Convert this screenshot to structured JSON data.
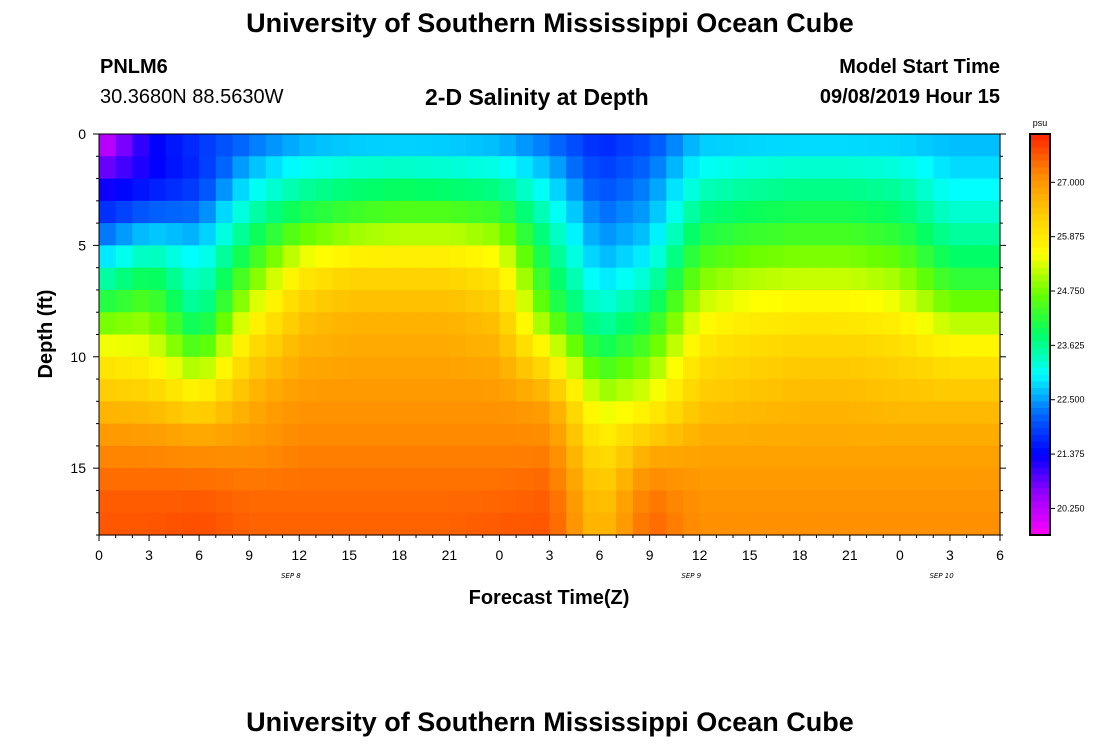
{
  "header": {
    "title": "University of Southern Mississippi Ocean Cube",
    "station_id": "PNLM6",
    "station_coords": "30.3680N 88.5630W",
    "plot_title": "2-D Salinity at Depth",
    "model_start_label": "Model Start Time",
    "model_start_value": "09/08/2019 Hour 15"
  },
  "footer": {
    "title": "University of Southern Mississippi Ocean Cube"
  },
  "chart_data": {
    "type": "heatmap",
    "title": "2-D Salinity at Depth",
    "xlabel": "Forecast Time(Z)",
    "ylabel": "Depth (ft)",
    "x_hours_range": [
      0,
      54
    ],
    "y_depth_range": [
      0,
      18
    ],
    "x_tick_labels": [
      "0",
      "3",
      "6",
      "9",
      "12",
      "15",
      "18",
      "21",
      "0",
      "3",
      "6",
      "9",
      "12",
      "15",
      "18",
      "21",
      "0",
      "3",
      "6"
    ],
    "y_tick_labels": [
      "0",
      "5",
      "10",
      "15"
    ],
    "y_tick_values": [
      0,
      5,
      10,
      15
    ],
    "date_labels": [
      {
        "text": "SEP 8",
        "hour": 11.5
      },
      {
        "text": "SEP 9",
        "hour": 35.5
      },
      {
        "text": "SEP 10",
        "hour": 50.5
      }
    ],
    "colorbar": {
      "unit": "psu",
      "range": [
        19.7,
        28.0
      ],
      "tick_labels": [
        "27.000",
        "25.875",
        "24.750",
        "23.625",
        "22.500",
        "21.375",
        "20.250"
      ],
      "tick_values": [
        27.0,
        25.875,
        24.75,
        23.625,
        22.5,
        21.375,
        20.25
      ],
      "colors": [
        "#ff00ff",
        "#9900ff",
        "#0000ff",
        "#0066ff",
        "#00ffff",
        "#00ff66",
        "#66ff00",
        "#ffff00",
        "#ffcc00",
        "#ff8800",
        "#ff2200"
      ]
    },
    "grid_hours": [
      0,
      3,
      6,
      9,
      12,
      15,
      18,
      21,
      24,
      27,
      30,
      33,
      36,
      39,
      42,
      45,
      48,
      51,
      54
    ],
    "grid_depths": [
      0,
      2,
      4,
      6,
      8,
      10,
      12,
      14,
      16,
      18
    ],
    "salinity_psu": [
      [
        19.8,
        21.3,
        21.8,
        22.1,
        22.4,
        22.5,
        22.5,
        22.5,
        22.4,
        22.1,
        21.6,
        21.9,
        22.6,
        22.6,
        22.6,
        22.6,
        22.6,
        22.6,
        22.6
      ],
      [
        21.0,
        21.3,
        21.7,
        22.8,
        23.3,
        23.5,
        23.6,
        23.5,
        23.4,
        22.8,
        21.9,
        22.3,
        23.2,
        23.4,
        23.5,
        23.5,
        23.4,
        22.9,
        22.9
      ],
      [
        21.9,
        22.4,
        22.4,
        23.6,
        24.3,
        24.6,
        24.8,
        24.8,
        24.6,
        23.4,
        22.3,
        22.6,
        23.9,
        24.1,
        24.2,
        24.2,
        24.0,
        23.4,
        23.4
      ],
      [
        23.1,
        23.8,
        23.1,
        24.4,
        25.7,
        26.1,
        26.1,
        26.1,
        25.8,
        23.9,
        22.7,
        23.1,
        24.6,
        24.9,
        25.0,
        25.0,
        24.8,
        24.0,
        24.0
      ],
      [
        24.4,
        24.7,
        23.5,
        25.4,
        26.4,
        26.6,
        26.6,
        26.6,
        26.4,
        24.4,
        23.3,
        23.9,
        25.4,
        25.7,
        25.8,
        25.8,
        25.6,
        24.9,
        24.9
      ],
      [
        25.8,
        25.6,
        24.6,
        26.2,
        26.7,
        26.8,
        26.8,
        26.8,
        26.7,
        25.8,
        24.1,
        24.7,
        26.0,
        26.2,
        26.3,
        26.3,
        26.2,
        25.9,
        25.9
      ],
      [
        26.5,
        26.4,
        26.0,
        26.7,
        27.0,
        27.0,
        27.0,
        27.0,
        27.0,
        26.8,
        25.2,
        25.5,
        26.4,
        26.5,
        26.6,
        26.6,
        26.5,
        26.5,
        26.5
      ],
      [
        27.1,
        27.1,
        27.0,
        27.0,
        27.2,
        27.2,
        27.2,
        27.2,
        27.2,
        27.2,
        25.9,
        26.6,
        26.8,
        26.8,
        26.8,
        26.8,
        26.8,
        26.8,
        26.8
      ],
      [
        27.5,
        27.5,
        27.5,
        27.4,
        27.4,
        27.4,
        27.4,
        27.4,
        27.4,
        27.5,
        26.3,
        27.3,
        27.0,
        27.0,
        27.0,
        27.0,
        27.0,
        27.0,
        27.0
      ],
      [
        27.6,
        27.6,
        27.7,
        27.5,
        27.5,
        27.5,
        27.5,
        27.5,
        27.6,
        27.6,
        26.5,
        27.5,
        27.1,
        27.1,
        27.1,
        27.1,
        27.1,
        27.1,
        27.1
      ]
    ]
  }
}
